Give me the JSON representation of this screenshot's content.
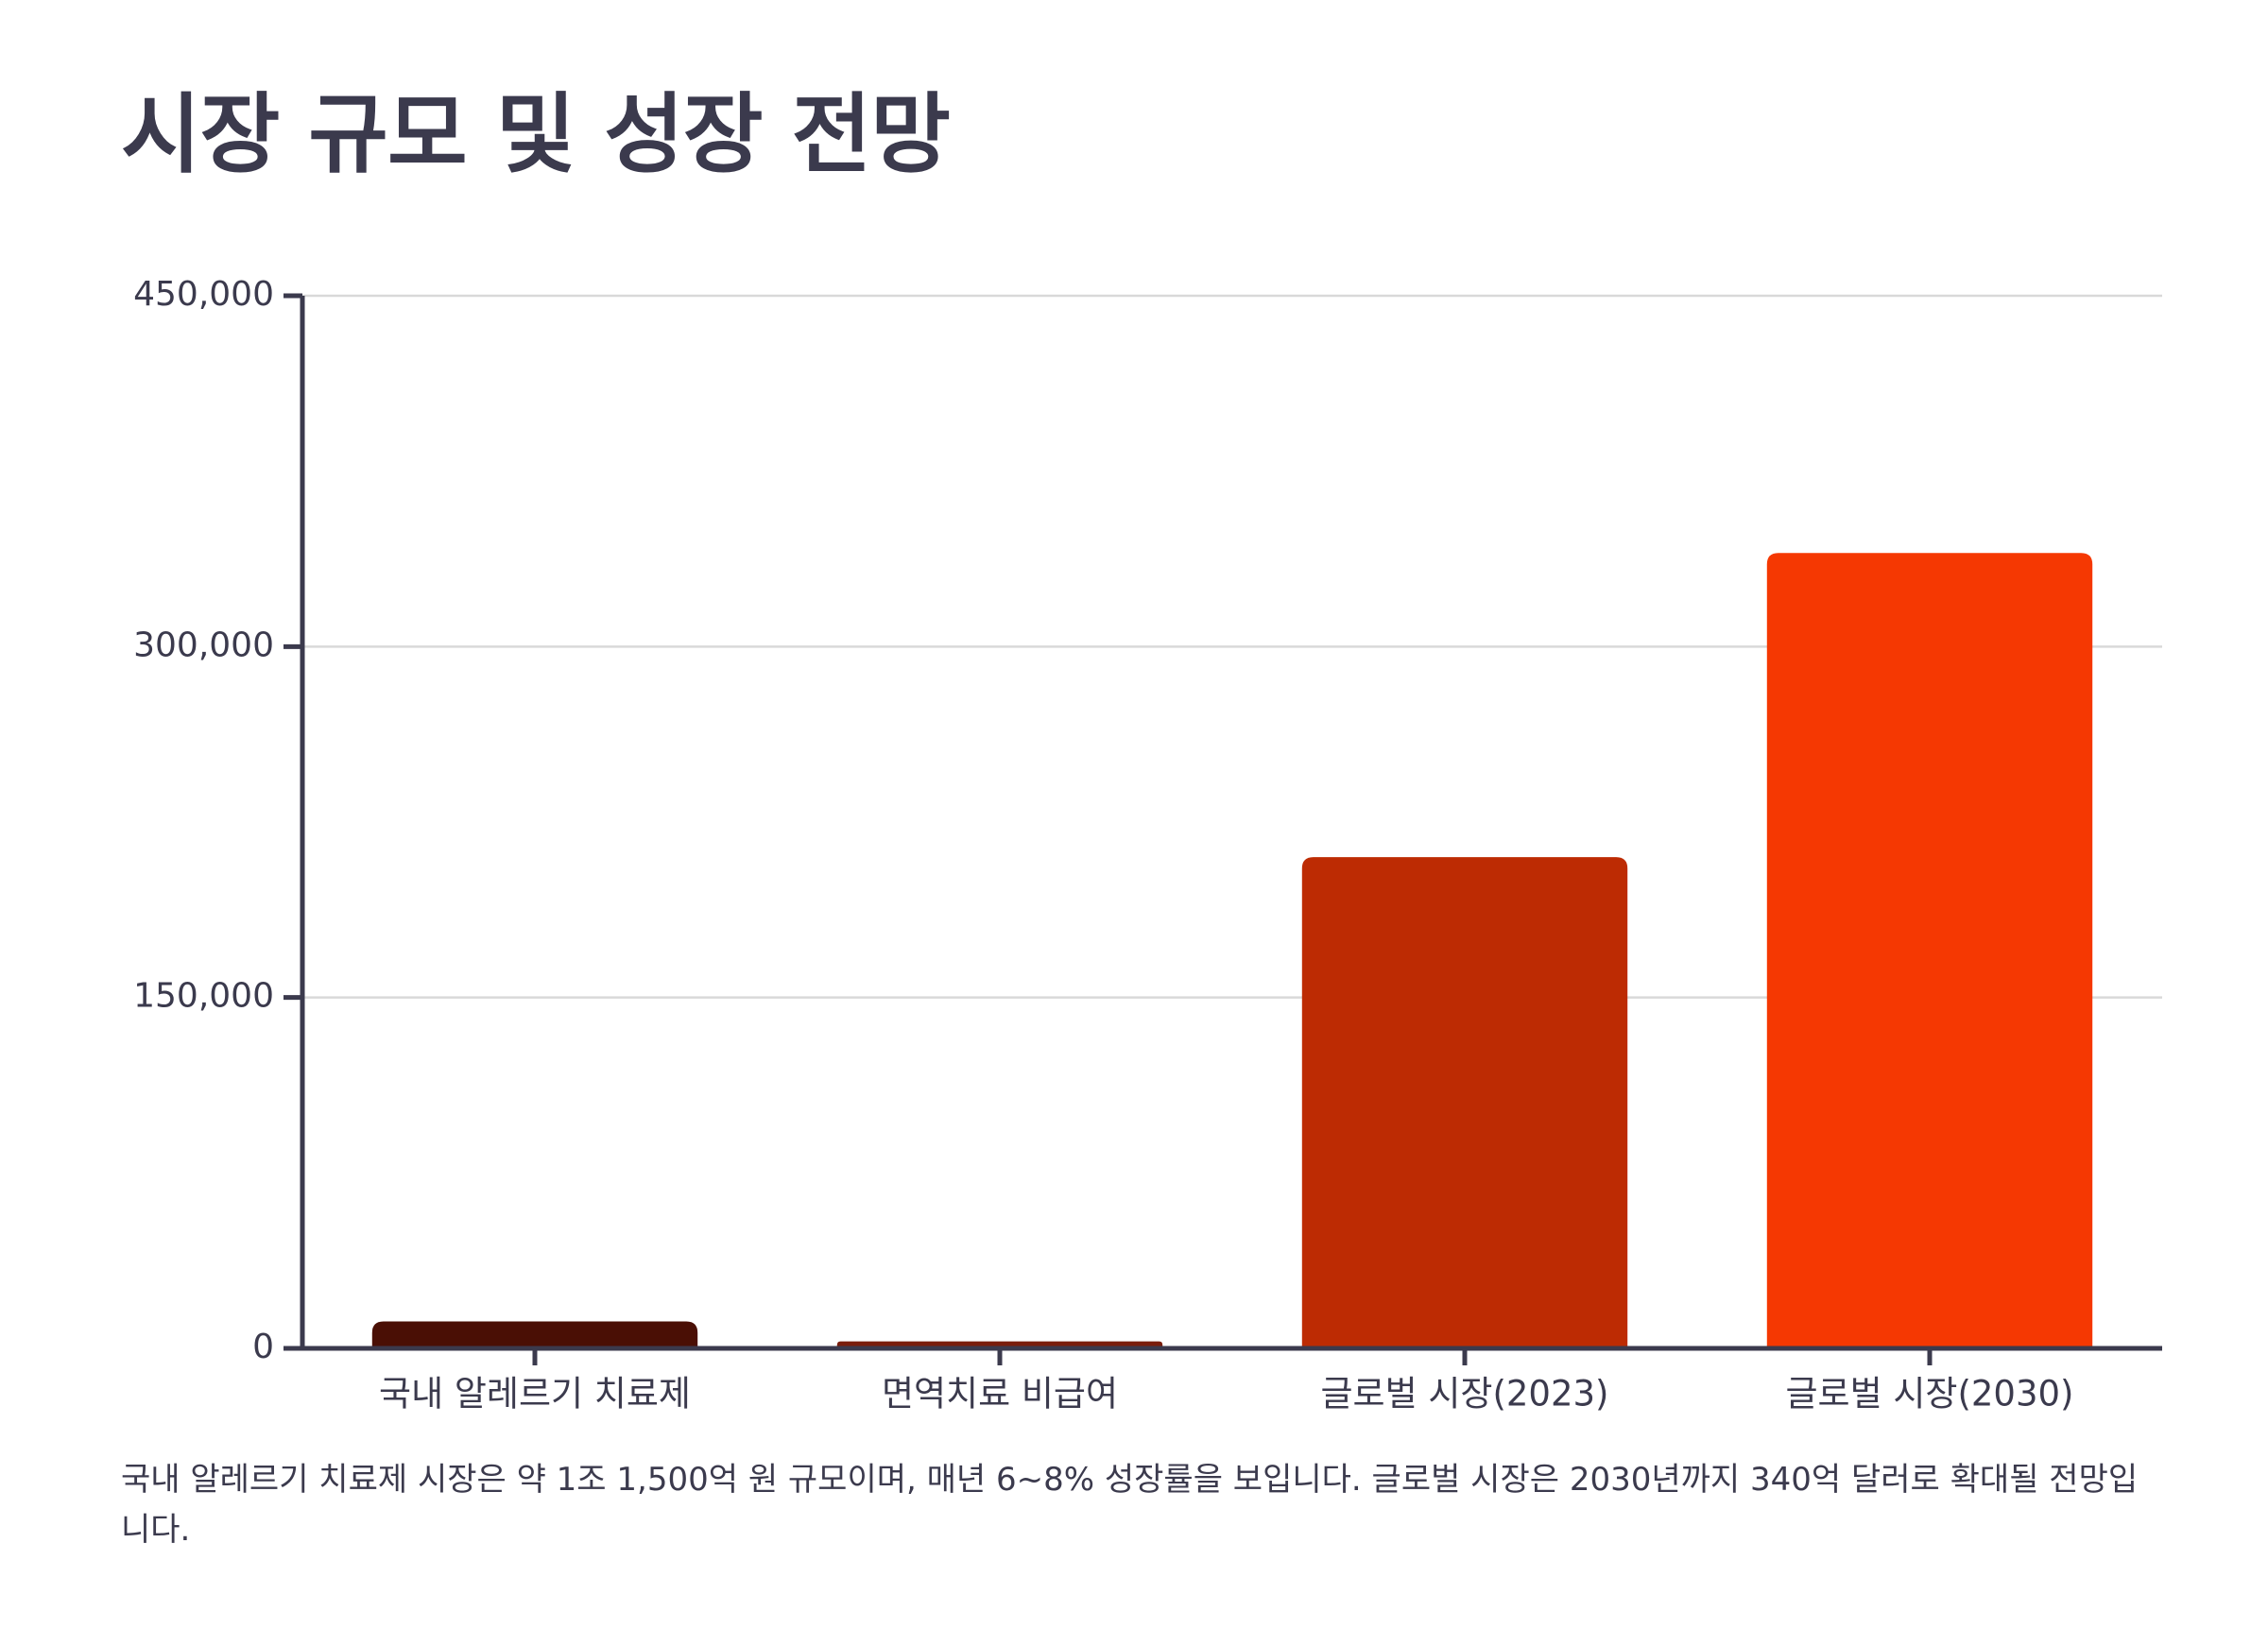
{
  "title": "시장 규모 및 성장 전망",
  "caption": "국내 알레르기 치료제 시장은 약 1조 1,500억 원 규모이며, 매년 6~8% 성장률을 보입니다. 글로벌 시장은 2030년까지 340억 달러로 확대될 전망입니다.",
  "colors": {
    "axis": "#3b3a4d",
    "grid": "#d9d9d9",
    "text": "#3b3a4d"
  },
  "chart_data": {
    "type": "bar",
    "title": "",
    "xlabel": "",
    "ylabel": "",
    "categories": [
      "국내 알레르기 치료제",
      "면역치료 비급여",
      "글로벌 시장(2023)",
      "글로벌 시장(2030)"
    ],
    "values": [
      11500,
      3000,
      210000,
      340000
    ],
    "bar_colors": [
      "#4a0f05",
      "#7a1d0c",
      "#bd2b03",
      "#f53802"
    ],
    "ylim": [
      0,
      450000
    ],
    "yticks": [
      0,
      150000,
      300000,
      450000
    ],
    "ytick_labels": [
      "0",
      "150,000",
      "300,000",
      "450,000"
    ],
    "grid": true,
    "legend": "none"
  }
}
